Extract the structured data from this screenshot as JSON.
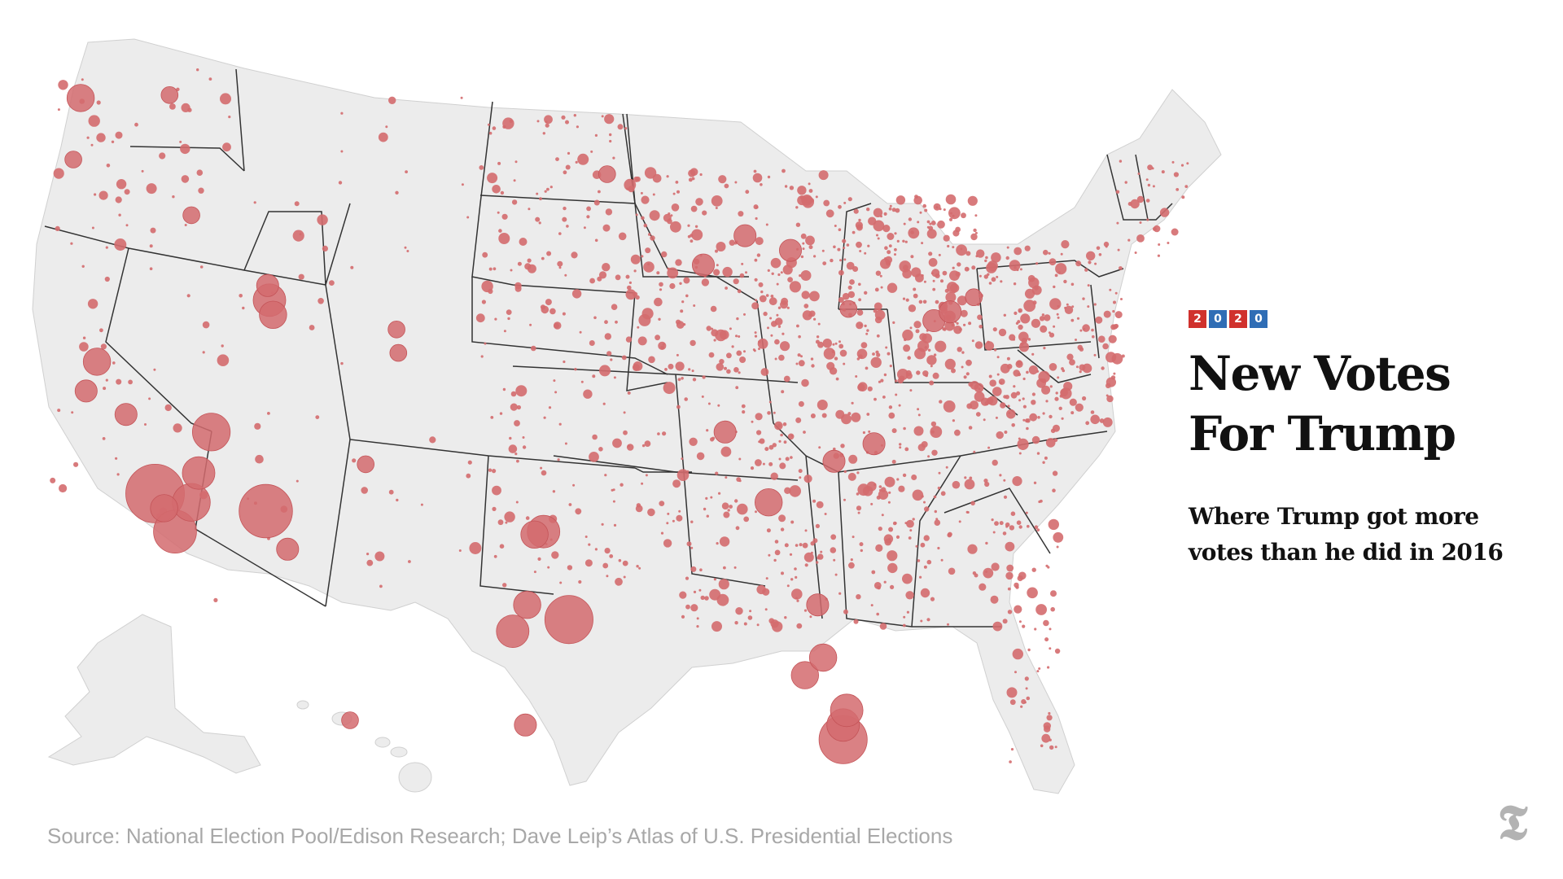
{
  "badge": {
    "digits": [
      "2",
      "0",
      "2",
      "0"
    ],
    "colors": [
      "#d0312d",
      "#2f6db5",
      "#d0312d",
      "#2f6db5"
    ]
  },
  "title": {
    "line1": "New Votes",
    "line2": "For Trump"
  },
  "subtitle": {
    "line1": "Where Trump got more",
    "line2": "votes than he did in 2016"
  },
  "source": "Source: National Election Pool/Edison Research; Dave Leip’s Atlas of U.S. Presidential Elections",
  "logo_icon": "nyt-logo-icon",
  "colors": {
    "bubble": "#d46b6e",
    "land": "#ececec",
    "state_border": "#333333",
    "source_text": "#a8a8a8"
  },
  "map": {
    "type": "bubble-map",
    "region": "United States counties",
    "measure": "increase in Trump votes over 2016",
    "hotspots": [
      {
        "place": "Los Angeles",
        "lon": -118.2,
        "lat": 34.1,
        "weight": 10
      },
      {
        "place": "San Diego",
        "lon": -117.1,
        "lat": 32.8,
        "weight": 7
      },
      {
        "place": "Riverside",
        "lon": -116.2,
        "lat": 33.8,
        "weight": 6
      },
      {
        "place": "San Bernardino",
        "lon": -115.8,
        "lat": 34.8,
        "weight": 5
      },
      {
        "place": "Orange",
        "lon": -117.7,
        "lat": 33.6,
        "weight": 4
      },
      {
        "place": "Phoenix",
        "lon": -112.1,
        "lat": 33.5,
        "weight": 9
      },
      {
        "place": "Tucson",
        "lon": -110.9,
        "lat": 32.2,
        "weight": 3
      },
      {
        "place": "Las Vegas",
        "lon": -115.1,
        "lat": 36.2,
        "weight": 6
      },
      {
        "place": "Sacramento",
        "lon": -121.4,
        "lat": 38.6,
        "weight": 4
      },
      {
        "place": "Fresno",
        "lon": -119.8,
        "lat": 36.8,
        "weight": 3
      },
      {
        "place": "Bay Area",
        "lon": -122.0,
        "lat": 37.6,
        "weight": 3
      },
      {
        "place": "Salt Lake City",
        "lon": -111.9,
        "lat": 40.7,
        "weight": 5
      },
      {
        "place": "Provo",
        "lon": -111.7,
        "lat": 40.2,
        "weight": 4
      },
      {
        "place": "Ogden",
        "lon": -112.0,
        "lat": 41.2,
        "weight": 3
      },
      {
        "place": "Boise",
        "lon": -116.2,
        "lat": 43.6,
        "weight": 2
      },
      {
        "place": "Seattle",
        "lon": -122.3,
        "lat": 47.6,
        "weight": 4
      },
      {
        "place": "Spokane",
        "lon": -117.4,
        "lat": 47.7,
        "weight": 2
      },
      {
        "place": "Portland",
        "lon": -122.7,
        "lat": 45.5,
        "weight": 2
      },
      {
        "place": "Denver",
        "lon": -104.9,
        "lat": 39.7,
        "weight": 2
      },
      {
        "place": "Colorado Springs",
        "lon": -104.8,
        "lat": 38.9,
        "weight": 2
      },
      {
        "place": "Albuquerque",
        "lon": -106.6,
        "lat": 35.1,
        "weight": 2
      },
      {
        "place": "Houston",
        "lon": -95.4,
        "lat": 29.8,
        "weight": 8
      },
      {
        "place": "Dallas",
        "lon": -96.8,
        "lat": 32.8,
        "weight": 5
      },
      {
        "place": "Fort Worth",
        "lon": -97.3,
        "lat": 32.7,
        "weight": 4
      },
      {
        "place": "Austin",
        "lon": -97.7,
        "lat": 30.3,
        "weight": 4
      },
      {
        "place": "San Antonio",
        "lon": -98.5,
        "lat": 29.4,
        "weight": 5
      },
      {
        "place": "Rio Grande Valley",
        "lon": -97.8,
        "lat": 26.2,
        "weight": 3
      },
      {
        "place": "Miami",
        "lon": -80.3,
        "lat": 25.7,
        "weight": 8
      },
      {
        "place": "Broward",
        "lon": -80.3,
        "lat": 26.2,
        "weight": 5
      },
      {
        "place": "Palm Beach",
        "lon": -80.1,
        "lat": 26.7,
        "weight": 5
      },
      {
        "place": "Tampa",
        "lon": -82.4,
        "lat": 27.9,
        "weight": 4
      },
      {
        "place": "Orlando",
        "lon": -81.4,
        "lat": 28.5,
        "weight": 4
      },
      {
        "place": "Jacksonville",
        "lon": -81.7,
        "lat": 30.3,
        "weight": 3
      },
      {
        "place": "Atlanta",
        "lon": -84.4,
        "lat": 33.8,
        "weight": 4
      },
      {
        "place": "Nashville",
        "lon": -86.8,
        "lat": 36.2,
        "weight": 3
      },
      {
        "place": "Charlotte",
        "lon": -80.8,
        "lat": 35.2,
        "weight": 3
      },
      {
        "place": "Raleigh",
        "lon": -78.6,
        "lat": 35.8,
        "weight": 3
      },
      {
        "place": "Detroit",
        "lon": -83.2,
        "lat": 42.4,
        "weight": 3
      },
      {
        "place": "Grand Rapids",
        "lon": -85.7,
        "lat": 42.9,
        "weight": 3
      },
      {
        "place": "Chicago suburbs",
        "lon": -88.0,
        "lat": 41.9,
        "weight": 3
      },
      {
        "place": "Minneapolis",
        "lon": -93.3,
        "lat": 45.0,
        "weight": 2
      },
      {
        "place": "Philadelphia",
        "lon": -75.3,
        "lat": 40.0,
        "weight": 3
      },
      {
        "place": "Pittsburgh",
        "lon": -80.0,
        "lat": 40.4,
        "weight": 2
      },
      {
        "place": "New Jersey",
        "lon": -74.4,
        "lat": 40.3,
        "weight": 3
      },
      {
        "place": "Long Island",
        "lon": -73.1,
        "lat": 40.8,
        "weight": 2
      },
      {
        "place": "Honolulu",
        "lon": -158.0,
        "lat": 21.4,
        "weight": 2
      }
    ]
  }
}
